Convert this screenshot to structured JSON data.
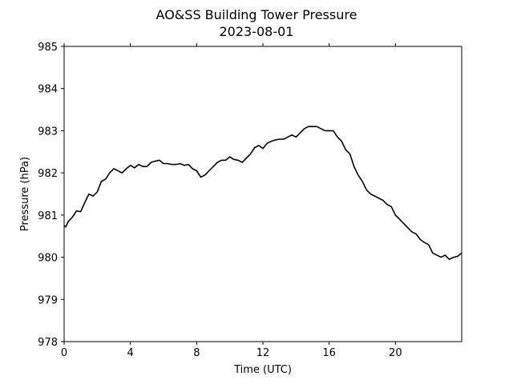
{
  "chart_data": {
    "type": "line",
    "title": "AO&SS Building Tower Pressure",
    "subtitle": "2023-08-01",
    "xlabel": "Time (UTC)",
    "ylabel": "Pressure (hPa)",
    "xlim": [
      0,
      24
    ],
    "ylim": [
      978,
      985
    ],
    "xticks": [
      0,
      4,
      8,
      12,
      16,
      20
    ],
    "xtick_labels": [
      "0",
      "4",
      "8",
      "12",
      "16",
      "20"
    ],
    "yticks": [
      978,
      979,
      980,
      981,
      982,
      983,
      984,
      985
    ],
    "ytick_labels": [
      "978",
      "979",
      "980",
      "981",
      "982",
      "983",
      "984",
      "985"
    ],
    "grid": false,
    "line_color": "#000000",
    "series": [
      {
        "x": [
          0,
          0.1,
          0.25,
          0.5,
          0.75,
          1.0,
          1.25,
          1.5,
          1.75,
          2.0,
          2.25,
          2.5,
          2.75,
          3.0,
          3.25,
          3.5,
          3.75,
          4.0,
          4.25,
          4.5,
          4.75,
          5.0,
          5.25,
          5.5,
          5.75,
          6.0,
          6.25,
          6.5,
          6.75,
          7.0,
          7.25,
          7.5,
          7.75,
          8.0,
          8.25,
          8.5,
          8.75,
          9.0,
          9.25,
          9.5,
          9.75,
          10.0,
          10.25,
          10.5,
          10.75,
          11.0,
          11.25,
          11.5,
          11.75,
          12.0,
          12.25,
          12.5,
          12.75,
          13.0,
          13.25,
          13.5,
          13.75,
          14.0,
          14.25,
          14.5,
          14.75,
          15.0,
          15.25,
          15.5,
          15.75,
          16.0,
          16.25,
          16.5,
          16.75,
          17.0,
          17.25,
          17.5,
          17.75,
          18.0,
          18.25,
          18.5,
          18.75,
          19.0,
          19.25,
          19.5,
          19.75,
          20.0,
          20.25,
          20.5,
          20.75,
          21.0,
          21.25,
          21.5,
          21.75,
          22.0,
          22.25,
          22.5,
          22.75,
          23.0,
          23.25,
          23.5,
          23.75,
          24.0
        ],
        "y": [
          980.75,
          980.72,
          980.85,
          980.95,
          981.1,
          981.08,
          981.3,
          981.5,
          981.45,
          981.55,
          981.8,
          981.85,
          982.0,
          982.1,
          982.05,
          982.0,
          982.1,
          982.18,
          982.12,
          982.2,
          982.15,
          982.15,
          982.25,
          982.28,
          982.3,
          982.22,
          982.22,
          982.2,
          982.2,
          982.22,
          982.18,
          982.2,
          982.1,
          982.05,
          981.9,
          981.95,
          982.05,
          982.15,
          982.25,
          982.3,
          982.3,
          982.38,
          982.32,
          982.3,
          982.25,
          982.35,
          982.45,
          982.6,
          982.65,
          982.58,
          982.7,
          982.75,
          982.78,
          982.8,
          982.8,
          982.85,
          982.9,
          982.85,
          982.95,
          983.05,
          983.1,
          983.1,
          983.1,
          983.05,
          983.0,
          983.0,
          983.0,
          982.85,
          982.75,
          982.55,
          982.45,
          982.15,
          981.95,
          981.8,
          981.6,
          981.5,
          981.45,
          981.4,
          981.35,
          981.25,
          981.2,
          981.0,
          980.9,
          980.8,
          980.7,
          980.6,
          980.55,
          980.42,
          980.35,
          980.3,
          980.1,
          980.05,
          980.0,
          980.05,
          979.95,
          980.0,
          980.02,
          980.1
        ]
      }
    ]
  }
}
